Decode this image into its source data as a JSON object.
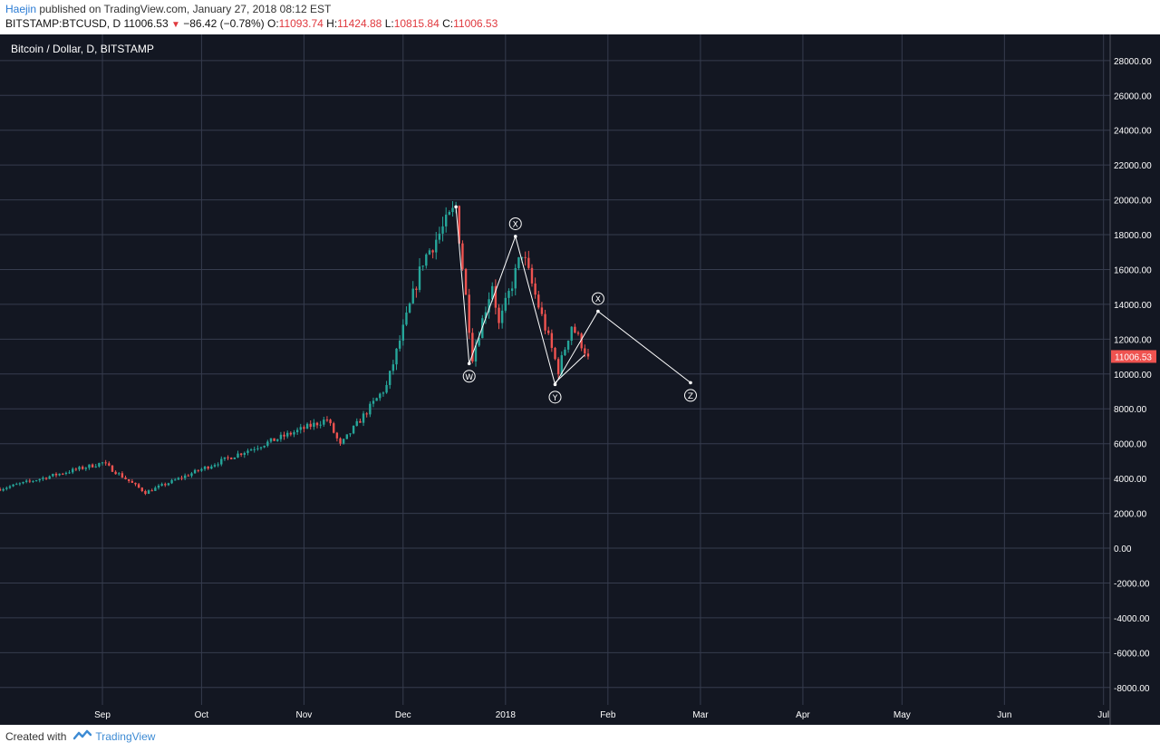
{
  "header": {
    "author": "Haejin",
    "published_text": "published on TradingView.com, January 27, 2018 08:12 EST"
  },
  "quote": {
    "symbol_line": "BITSTAMP:BTCUSD, D",
    "last": "11006.53",
    "change": "−86.42 (−0.78%)",
    "open_label": "O:",
    "open": "11093.74",
    "high_label": "H:",
    "high": "11424.88",
    "low_label": "L:",
    "low": "10815.84",
    "close_label": "C:",
    "close": "11006.53"
  },
  "footer": {
    "created_with": "Created with",
    "brand": "TradingView"
  },
  "colors": {
    "background": "#131722",
    "grid": "#363c4e",
    "up": "#26a69a",
    "down": "#ef5350",
    "price_tag": "#ef5350",
    "annotation": "#ffffff",
    "axis_text": "#ffffff"
  },
  "chart_data": {
    "type": "candlestick",
    "title": "Bitcoin / Dollar, D, BITSTAMP",
    "x_range": [
      "2017-08-01",
      "2018-07-03"
    ],
    "ylim": [
      -9000,
      29500
    ],
    "y_ticks": [
      28000,
      26000,
      24000,
      22000,
      20000,
      18000,
      16000,
      14000,
      12000,
      10000,
      8000,
      6000,
      4000,
      2000,
      0,
      -2000,
      -4000,
      -6000,
      -8000
    ],
    "y_tick_labels": [
      "28000.00",
      "26000.00",
      "24000.00",
      "22000.00",
      "20000.00",
      "18000.00",
      "16000.00",
      "14000.00",
      "12000.00",
      "10000.00",
      "8000.00",
      "6000.00",
      "4000.00",
      "2000.00",
      "0.00",
      "-2000.00",
      "-4000.00",
      "-6000.00",
      "-8000.00"
    ],
    "x_ticks": [
      {
        "date": "2017-09-01",
        "label": "Sep"
      },
      {
        "date": "2017-10-01",
        "label": "Oct"
      },
      {
        "date": "2017-11-01",
        "label": "Nov"
      },
      {
        "date": "2017-12-01",
        "label": "Dec"
      },
      {
        "date": "2018-01-01",
        "label": "2018"
      },
      {
        "date": "2018-02-01",
        "label": "Feb"
      },
      {
        "date": "2018-03-01",
        "label": "Mar"
      },
      {
        "date": "2018-04-01",
        "label": "Apr"
      },
      {
        "date": "2018-05-01",
        "label": "May"
      },
      {
        "date": "2018-06-01",
        "label": "Jun"
      },
      {
        "date": "2018-07-01",
        "label": "Jul"
      }
    ],
    "last_price": 11006.53,
    "last_price_label": "11006.53",
    "key_points": [
      {
        "date": "2017-08-01",
        "price": 3400
      },
      {
        "date": "2017-09-01",
        "price": 4900
      },
      {
        "date": "2017-09-14",
        "price": 3200
      },
      {
        "date": "2017-10-12",
        "price": 5400
      },
      {
        "date": "2017-11-08",
        "price": 7400
      },
      {
        "date": "2017-11-12",
        "price": 5900
      },
      {
        "date": "2017-11-26",
        "price": 9300
      },
      {
        "date": "2017-12-07",
        "price": 16500
      },
      {
        "date": "2017-12-17",
        "price": 19600
      },
      {
        "date": "2017-12-22",
        "price": 11000
      },
      {
        "date": "2017-12-28",
        "price": 15200
      },
      {
        "date": "2017-12-30",
        "price": 12800
      },
      {
        "date": "2018-01-06",
        "price": 17000
      },
      {
        "date": "2018-01-17",
        "price": 10200
      },
      {
        "date": "2018-01-21",
        "price": 12800
      },
      {
        "date": "2018-01-26",
        "price": 11006
      }
    ],
    "wave_path": [
      {
        "date": "2017-12-17",
        "price": 19600
      },
      {
        "date": "2017-12-21",
        "price": 10600
      },
      {
        "date": "2018-01-04",
        "price": 17900
      },
      {
        "date": "2018-01-16",
        "price": 9400
      },
      {
        "date": "2018-01-29",
        "price": 13600
      },
      {
        "date": "2018-02-26",
        "price": 9500
      }
    ],
    "wave_labels": [
      {
        "label": "W",
        "date": "2017-12-21",
        "price": 10600,
        "pos": "below"
      },
      {
        "label": "X",
        "date": "2018-01-04",
        "price": 17900,
        "pos": "above"
      },
      {
        "label": "Y",
        "date": "2018-01-16",
        "price": 9400,
        "pos": "below"
      },
      {
        "label": "X",
        "date": "2018-01-29",
        "price": 13600,
        "pos": "above"
      },
      {
        "label": "Z",
        "date": "2018-02-26",
        "price": 9500,
        "pos": "below"
      }
    ],
    "extra_segments": [
      {
        "from": {
          "date": "2018-01-16",
          "price": 9500
        },
        "to": {
          "date": "2018-01-25",
          "price": 11100
        }
      }
    ]
  }
}
